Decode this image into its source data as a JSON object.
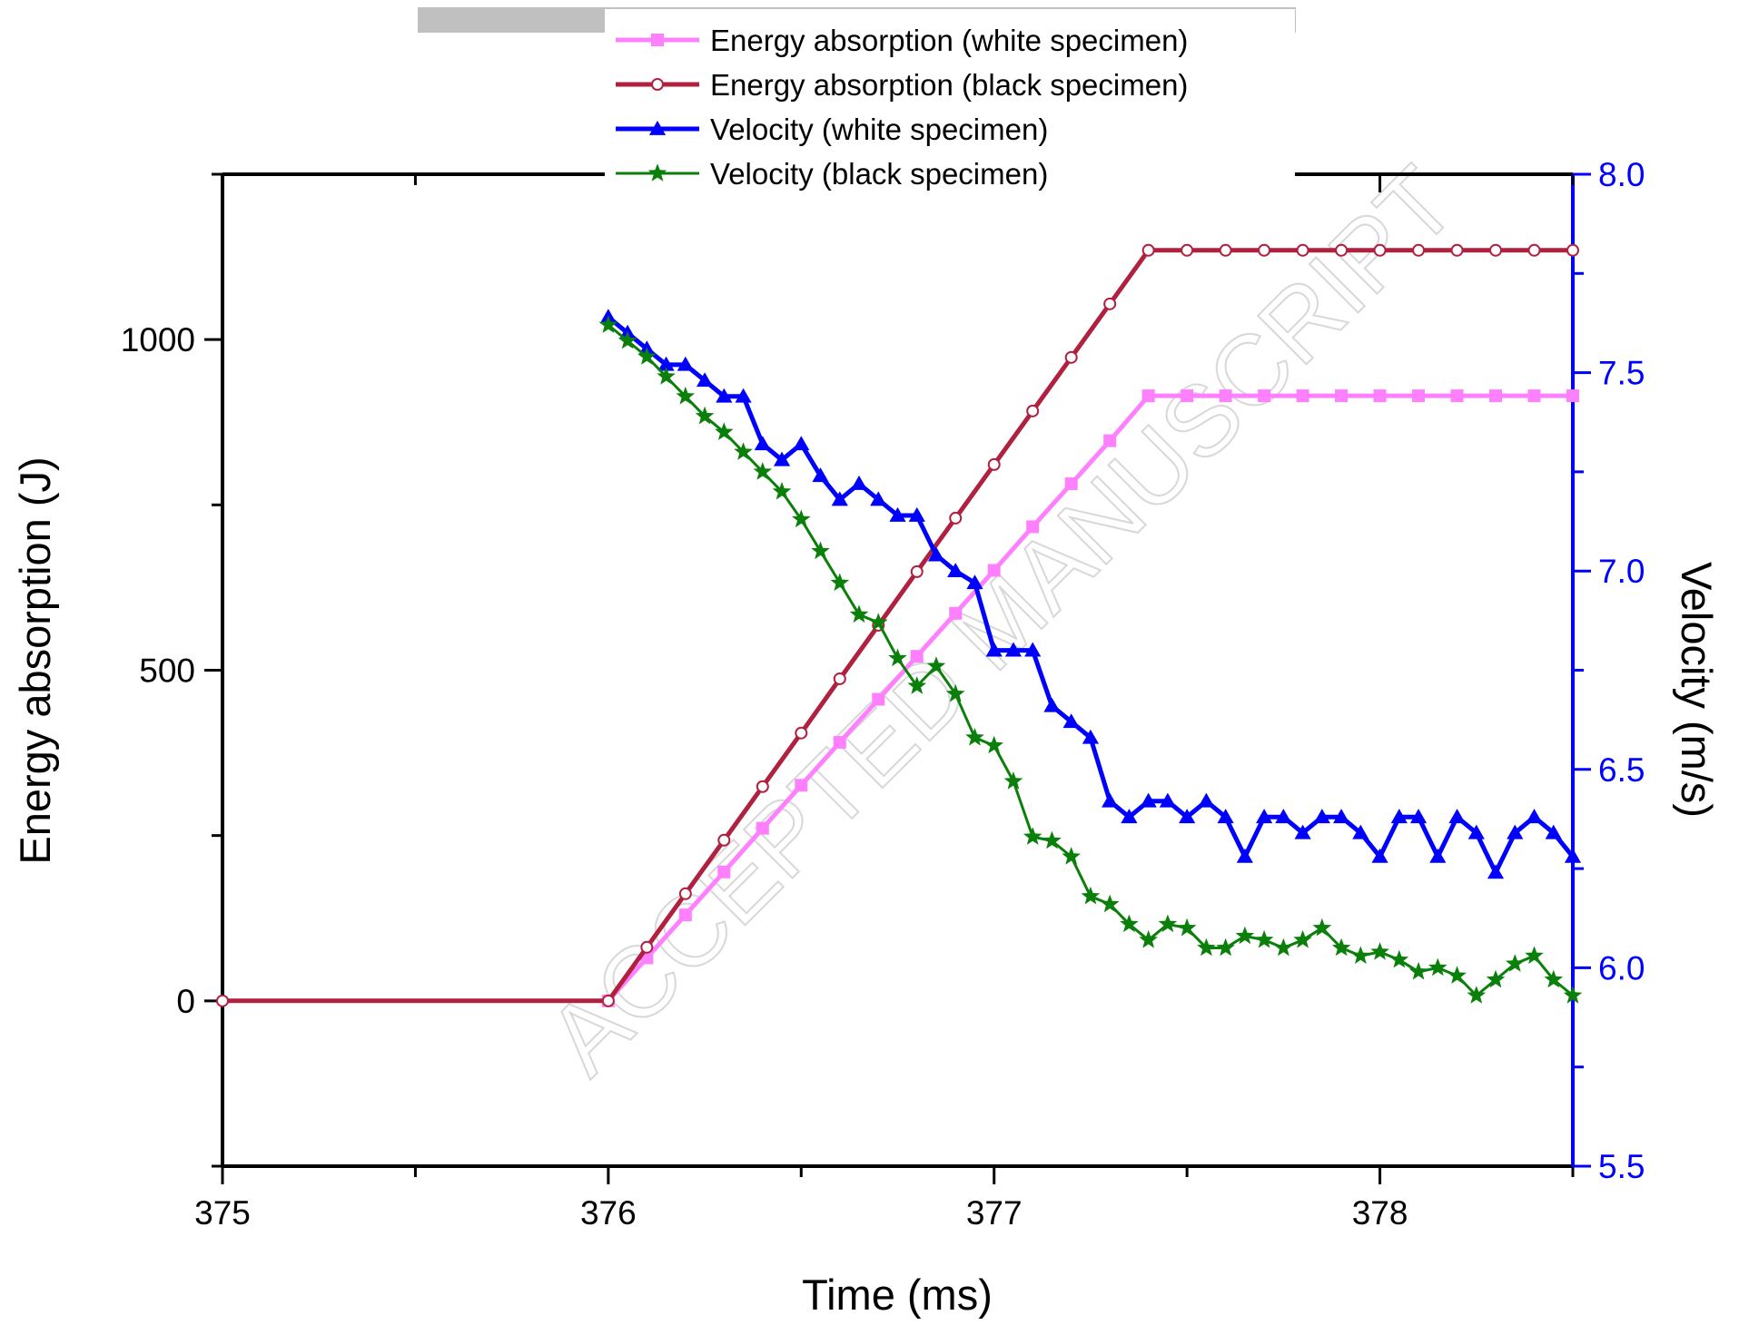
{
  "chart_data": {
    "type": "line",
    "xlabel": "Time (ms)",
    "ylabel_left": "Energy absorption (J)",
    "ylabel_right": "Velocity (m/s)",
    "xlim": [
      375,
      378.5
    ],
    "xticks": [
      375,
      376,
      377,
      378
    ],
    "ylim_left": [
      -250,
      1250
    ],
    "yticks_left": [
      0,
      500,
      1000
    ],
    "ylim_right": [
      5.5,
      8.0
    ],
    "yticks_right": [
      5.5,
      6.0,
      6.5,
      7.0,
      7.5,
      8.0
    ],
    "grid": false,
    "legend_position": "top-center",
    "watermark": "ACCEPTED MANUSCRIPT",
    "colors": {
      "right_axis": "#0000ff"
    },
    "series": [
      {
        "name": "Energy absorption (white specimen)",
        "axis": "left",
        "color": "#ff80ff",
        "marker": "square",
        "x": [
          376.0,
          376.1,
          376.2,
          376.3,
          376.4,
          376.5,
          376.6,
          376.7,
          376.8,
          376.9,
          377.0,
          377.1,
          377.2,
          377.3,
          377.4,
          377.5,
          377.6,
          377.7,
          377.8,
          377.9,
          378.0,
          378.1,
          378.2,
          378.3,
          378.4,
          378.5
        ],
        "values": [
          0,
          65,
          130,
          195,
          261,
          326,
          391,
          456,
          521,
          586,
          651,
          717,
          782,
          847,
          915,
          915,
          915,
          915,
          915,
          915,
          915,
          915,
          915,
          915,
          915,
          915
        ]
      },
      {
        "name": "Energy absorption (black specimen)",
        "axis": "left",
        "color": "#b0203f",
        "marker": "open-circle",
        "x": [
          375.0,
          376.0,
          376.1,
          376.2,
          376.3,
          376.4,
          376.5,
          376.6,
          376.7,
          376.8,
          376.9,
          377.0,
          377.1,
          377.2,
          377.3,
          377.4,
          377.5,
          377.6,
          377.7,
          377.8,
          377.9,
          378.0,
          378.1,
          378.2,
          378.3,
          378.4,
          378.5
        ],
        "values": [
          0,
          0,
          81,
          162,
          243,
          324,
          405,
          487,
          568,
          649,
          730,
          811,
          892,
          973,
          1054,
          1135,
          1135,
          1135,
          1135,
          1135,
          1135,
          1135,
          1135,
          1135,
          1135,
          1135,
          1135
        ]
      },
      {
        "name": "Velocity (white specimen)",
        "axis": "right",
        "color": "#0000ff",
        "marker": "triangle",
        "x": [
          376.0,
          376.05,
          376.1,
          376.15,
          376.2,
          376.25,
          376.3,
          376.35,
          376.4,
          376.45,
          376.5,
          376.55,
          376.6,
          376.65,
          376.7,
          376.75,
          376.8,
          376.85,
          376.9,
          376.95,
          377.0,
          377.05,
          377.1,
          377.15,
          377.2,
          377.25,
          377.3,
          377.35,
          377.4,
          377.45,
          377.5,
          377.55,
          377.6,
          377.65,
          377.7,
          377.75,
          377.8,
          377.85,
          377.9,
          377.95,
          378.0,
          378.05,
          378.1,
          378.15,
          378.2,
          378.25,
          378.3,
          378.35,
          378.4,
          378.45,
          378.5
        ],
        "values": [
          7.64,
          7.6,
          7.56,
          7.52,
          7.52,
          7.48,
          7.44,
          7.44,
          7.32,
          7.28,
          7.32,
          7.24,
          7.18,
          7.22,
          7.18,
          7.14,
          7.14,
          7.04,
          7.0,
          6.97,
          6.8,
          6.8,
          6.8,
          6.66,
          6.62,
          6.58,
          6.42,
          6.38,
          6.42,
          6.42,
          6.38,
          6.42,
          6.38,
          6.28,
          6.38,
          6.38,
          6.34,
          6.38,
          6.38,
          6.34,
          6.28,
          6.38,
          6.38,
          6.28,
          6.38,
          6.34,
          6.24,
          6.34,
          6.38,
          6.34,
          6.28
        ]
      },
      {
        "name": "Velocity (black specimen)",
        "axis": "right",
        "color": "#0a800a",
        "marker": "star",
        "x": [
          376.0,
          376.05,
          376.1,
          376.15,
          376.2,
          376.25,
          376.3,
          376.35,
          376.4,
          376.45,
          376.5,
          376.55,
          376.6,
          376.65,
          376.7,
          376.75,
          376.8,
          376.85,
          376.9,
          376.95,
          377.0,
          377.05,
          377.1,
          377.15,
          377.2,
          377.25,
          377.3,
          377.35,
          377.4,
          377.45,
          377.5,
          377.55,
          377.6,
          377.65,
          377.7,
          377.75,
          377.8,
          377.85,
          377.9,
          377.95,
          378.0,
          378.05,
          378.1,
          378.15,
          378.2,
          378.25,
          378.3,
          378.35,
          378.4,
          378.45,
          378.5
        ],
        "values": [
          7.62,
          7.58,
          7.54,
          7.49,
          7.44,
          7.39,
          7.35,
          7.3,
          7.25,
          7.2,
          7.13,
          7.05,
          6.97,
          6.89,
          6.87,
          6.78,
          6.71,
          6.76,
          6.69,
          6.58,
          6.56,
          6.47,
          6.33,
          6.32,
          6.28,
          6.18,
          6.16,
          6.11,
          6.07,
          6.11,
          6.1,
          6.05,
          6.05,
          6.08,
          6.07,
          6.05,
          6.07,
          6.1,
          6.05,
          6.03,
          6.04,
          6.02,
          5.99,
          6.0,
          5.98,
          5.93,
          5.97,
          6.01,
          6.03,
          5.97,
          5.93
        ]
      }
    ]
  }
}
